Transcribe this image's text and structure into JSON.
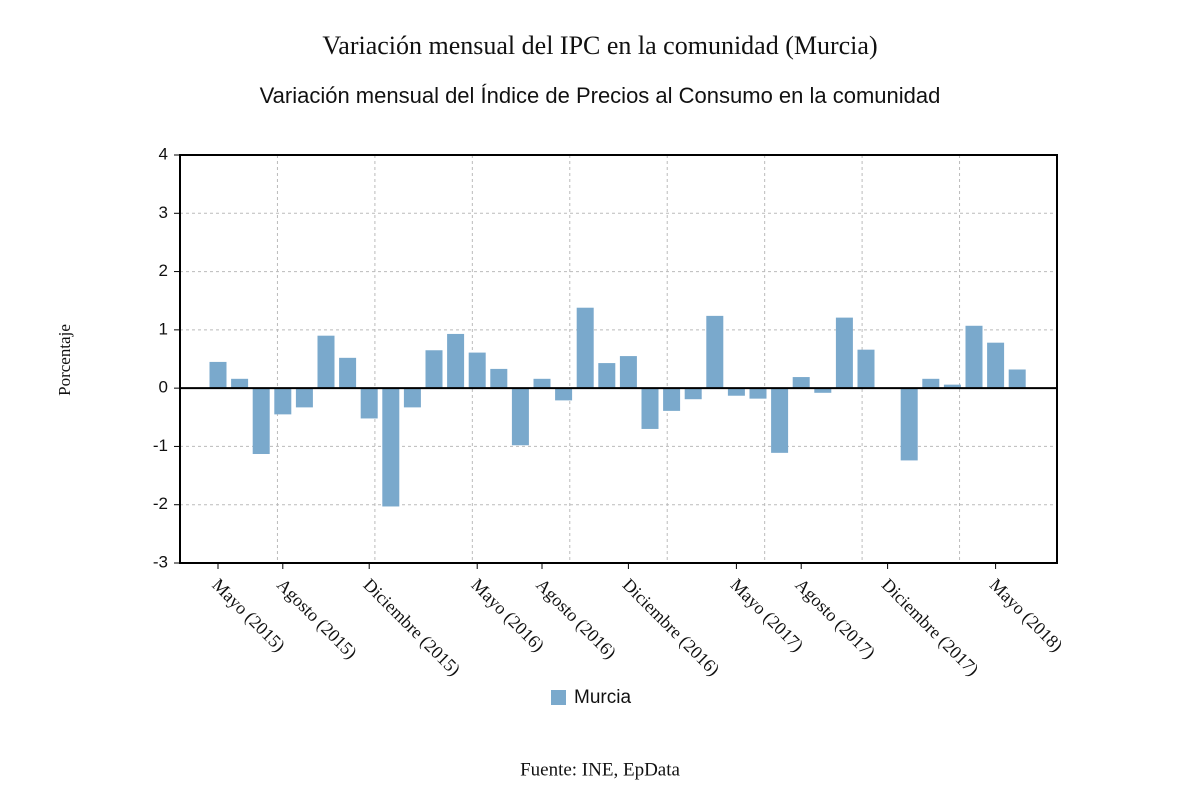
{
  "chart_data": {
    "type": "bar",
    "title": "Variación mensual del IPC en la comunidad (Murcia)",
    "subtitle": "Variación mensual del Índice de Precios al Consumo en la comunidad",
    "y_label": "Porcentaje",
    "source": "Fuente: INE, EpData",
    "categories": [
      "Mayo (2015)",
      null,
      null,
      "Agosto (2015)",
      null,
      null,
      null,
      "Diciembre (2015)",
      null,
      null,
      null,
      null,
      "Mayo (2016)",
      null,
      null,
      "Agosto (2016)",
      null,
      null,
      null,
      "Diciembre (2016)",
      null,
      null,
      null,
      null,
      "Mayo (2017)",
      null,
      null,
      "Agosto (2017)",
      null,
      null,
      null,
      "Diciembre (2017)",
      null,
      null,
      null,
      null,
      "Mayo (2018)",
      null
    ],
    "series": [
      {
        "name": "Murcia",
        "color": "#7aa9cc",
        "values": [
          0.45,
          0.16,
          -1.13,
          -0.45,
          -0.33,
          0.9,
          0.52,
          -0.52,
          -2.03,
          -0.33,
          0.65,
          0.93,
          0.61,
          0.33,
          -0.98,
          0.16,
          -0.21,
          1.38,
          0.43,
          0.55,
          -0.7,
          -0.39,
          -0.19,
          1.24,
          -0.13,
          -0.18,
          -1.11,
          0.19,
          -0.08,
          1.21,
          0.66,
          0,
          -1.24,
          0.16,
          0.06,
          1.07,
          0.78,
          0.32
        ]
      }
    ],
    "ylim": [
      -3,
      4
    ],
    "yticks": [
      -3,
      -2,
      -1,
      0,
      1,
      2,
      3,
      4
    ],
    "grid": true
  }
}
